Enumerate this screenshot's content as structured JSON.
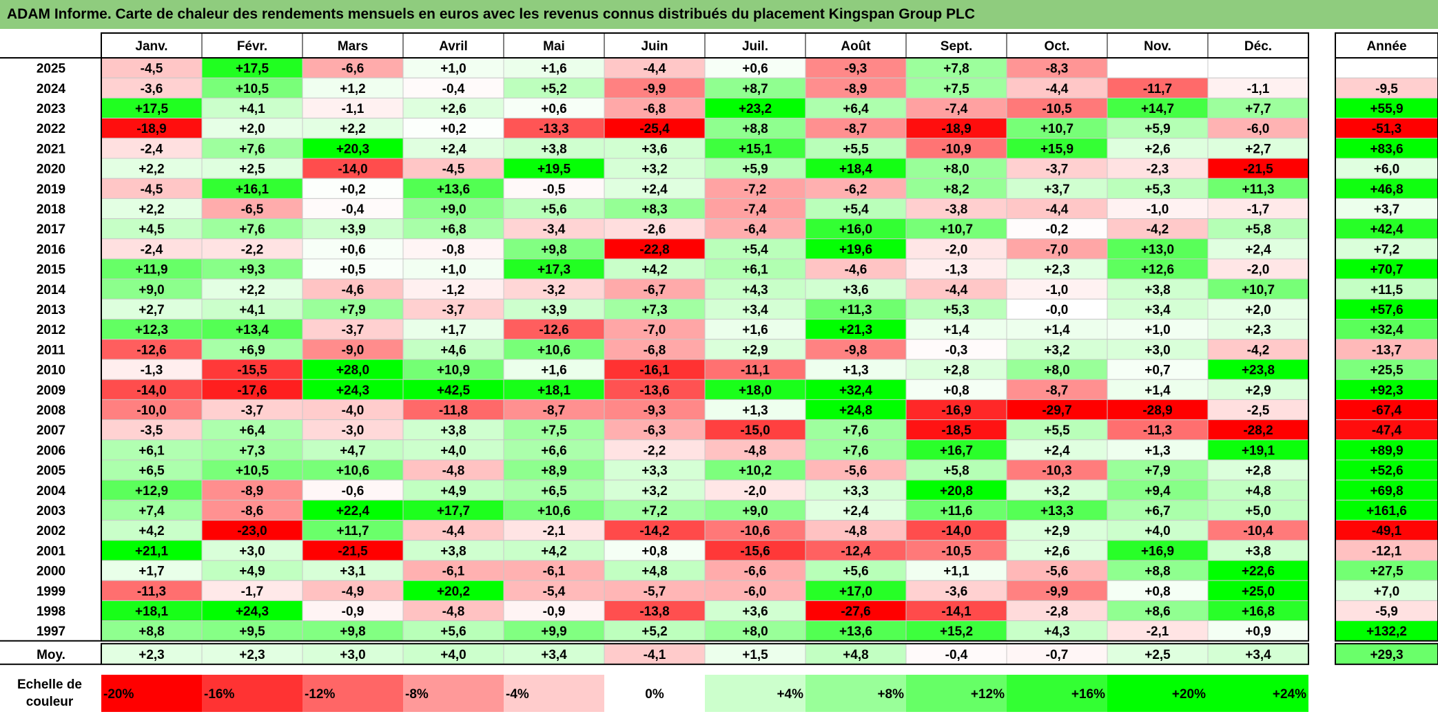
{
  "title": "ADAM Informe. Carte de chaleur des rendements mensuels en euros avec les revenus connus distribués du placement Kingspan Group PLC",
  "chart_data": {
    "type": "heatmap",
    "title": "ADAM Informe. Carte de chaleur des rendements mensuels en euros avec les revenus connus distribués du placement Kingspan Group PLC",
    "months": [
      "Janv.",
      "Févr.",
      "Mars",
      "Avril",
      "Mai",
      "Juin",
      "Juil.",
      "Août",
      "Sept.",
      "Oct.",
      "Nov.",
      "Déc."
    ],
    "year_header": "Année",
    "rows": [
      {
        "year": "2025",
        "values": [
          "-4,5",
          "+17,5",
          "-6,6",
          "+1,0",
          "+1,6",
          "-4,4",
          "+0,6",
          "-9,3",
          "+7,8",
          "-8,3",
          "",
          ""
        ],
        "annual": ""
      },
      {
        "year": "2024",
        "values": [
          "-3,6",
          "+10,5",
          "+1,2",
          "-0,4",
          "+5,2",
          "-9,9",
          "+8,7",
          "-8,9",
          "+7,5",
          "-4,4",
          "-11,7",
          "-1,1"
        ],
        "annual": "-9,5"
      },
      {
        "year": "2023",
        "values": [
          "+17,5",
          "+4,1",
          "-1,1",
          "+2,6",
          "+0,6",
          "-6,8",
          "+23,2",
          "+6,4",
          "-7,4",
          "-10,5",
          "+14,7",
          "+7,7"
        ],
        "annual": "+55,9"
      },
      {
        "year": "2022",
        "values": [
          "-18,9",
          "+2,0",
          "+2,2",
          "+0,2",
          "-13,3",
          "-25,4",
          "+8,8",
          "-8,7",
          "-18,9",
          "+10,7",
          "+5,9",
          "-6,0"
        ],
        "annual": "-51,3"
      },
      {
        "year": "2021",
        "values": [
          "-2,4",
          "+7,6",
          "+20,3",
          "+2,4",
          "+3,8",
          "+3,6",
          "+15,1",
          "+5,5",
          "-10,9",
          "+15,9",
          "+2,6",
          "+2,7"
        ],
        "annual": "+83,6"
      },
      {
        "year": "2020",
        "values": [
          "+2,2",
          "+2,5",
          "-14,0",
          "-4,5",
          "+19,5",
          "+3,2",
          "+5,9",
          "+18,4",
          "+8,0",
          "-3,7",
          "-2,3",
          "-21,5"
        ],
        "annual": "+6,0"
      },
      {
        "year": "2019",
        "values": [
          "-4,5",
          "+16,1",
          "+0,2",
          "+13,6",
          "-0,5",
          "+2,4",
          "-7,2",
          "-6,2",
          "+8,2",
          "+3,7",
          "+5,3",
          "+11,3"
        ],
        "annual": "+46,8"
      },
      {
        "year": "2018",
        "values": [
          "+2,2",
          "-6,5",
          "-0,4",
          "+9,0",
          "+5,6",
          "+8,3",
          "-7,4",
          "+5,4",
          "-3,8",
          "-4,4",
          "-1,0",
          "-1,7"
        ],
        "annual": "+3,7"
      },
      {
        "year": "2017",
        "values": [
          "+4,5",
          "+7,6",
          "+3,9",
          "+6,8",
          "-3,4",
          "-2,6",
          "-6,4",
          "+16,0",
          "+10,7",
          "-0,2",
          "-4,2",
          "+5,8"
        ],
        "annual": "+42,4"
      },
      {
        "year": "2016",
        "values": [
          "-2,4",
          "-2,2",
          "+0,6",
          "-0,8",
          "+9,8",
          "-22,8",
          "+5,4",
          "+19,6",
          "-2,0",
          "-7,0",
          "+13,0",
          "+2,4"
        ],
        "annual": "+7,2"
      },
      {
        "year": "2015",
        "values": [
          "+11,9",
          "+9,3",
          "+0,5",
          "+1,0",
          "+17,3",
          "+4,2",
          "+6,1",
          "-4,6",
          "-1,3",
          "+2,3",
          "+12,6",
          "-2,0"
        ],
        "annual": "+70,7"
      },
      {
        "year": "2014",
        "values": [
          "+9,0",
          "+2,2",
          "-4,6",
          "-1,2",
          "-3,2",
          "-6,7",
          "+4,3",
          "+3,6",
          "-4,4",
          "-1,0",
          "+3,8",
          "+10,7"
        ],
        "annual": "+11,5"
      },
      {
        "year": "2013",
        "values": [
          "+2,7",
          "+4,1",
          "+7,9",
          "-3,7",
          "+3,9",
          "+7,3",
          "+3,4",
          "+11,3",
          "+5,3",
          "-0,0",
          "+3,4",
          "+2,0"
        ],
        "annual": "+57,6"
      },
      {
        "year": "2012",
        "values": [
          "+12,3",
          "+13,4",
          "-3,7",
          "+1,7",
          "-12,6",
          "-7,0",
          "+1,6",
          "+21,3",
          "+1,4",
          "+1,4",
          "+1,0",
          "+2,3"
        ],
        "annual": "+32,4"
      },
      {
        "year": "2011",
        "values": [
          "-12,6",
          "+6,9",
          "-9,0",
          "+4,6",
          "+10,6",
          "-6,8",
          "+2,9",
          "-9,8",
          "-0,3",
          "+3,2",
          "+3,0",
          "-4,2"
        ],
        "annual": "-13,7"
      },
      {
        "year": "2010",
        "values": [
          "-1,3",
          "-15,5",
          "+28,0",
          "+10,9",
          "+1,6",
          "-16,1",
          "-11,1",
          "+1,3",
          "+2,8",
          "+8,0",
          "+0,7",
          "+23,8"
        ],
        "annual": "+25,5"
      },
      {
        "year": "2009",
        "values": [
          "-14,0",
          "-17,6",
          "+24,3",
          "+42,5",
          "+18,1",
          "-13,6",
          "+18,0",
          "+32,4",
          "+0,8",
          "-8,7",
          "+1,4",
          "+2,9"
        ],
        "annual": "+92,3"
      },
      {
        "year": "2008",
        "values": [
          "-10,0",
          "-3,7",
          "-4,0",
          "-11,8",
          "-8,7",
          "-9,3",
          "+1,3",
          "+24,8",
          "-16,9",
          "-29,7",
          "-28,9",
          "-2,5"
        ],
        "annual": "-67,4"
      },
      {
        "year": "2007",
        "values": [
          "-3,5",
          "+6,4",
          "-3,0",
          "+3,8",
          "+7,5",
          "-6,3",
          "-15,0",
          "+7,6",
          "-18,5",
          "+5,5",
          "-11,3",
          "-28,2"
        ],
        "annual": "-47,4"
      },
      {
        "year": "2006",
        "values": [
          "+6,1",
          "+7,3",
          "+4,7",
          "+4,0",
          "+6,6",
          "-2,2",
          "-4,8",
          "+7,6",
          "+16,7",
          "+2,4",
          "+1,3",
          "+19,1"
        ],
        "annual": "+89,9"
      },
      {
        "year": "2005",
        "values": [
          "+6,5",
          "+10,5",
          "+10,6",
          "-4,8",
          "+8,9",
          "+3,3",
          "+10,2",
          "-5,6",
          "+5,8",
          "-10,3",
          "+7,9",
          "+2,8"
        ],
        "annual": "+52,6"
      },
      {
        "year": "2004",
        "values": [
          "+12,9",
          "-8,9",
          "-0,6",
          "+4,9",
          "+6,5",
          "+3,2",
          "-2,0",
          "+3,3",
          "+20,8",
          "+3,2",
          "+9,4",
          "+4,8"
        ],
        "annual": "+69,8"
      },
      {
        "year": "2003",
        "values": [
          "+7,4",
          "-8,6",
          "+22,4",
          "+17,7",
          "+10,6",
          "+7,2",
          "+9,0",
          "+2,4",
          "+11,6",
          "+13,3",
          "+6,7",
          "+5,0"
        ],
        "annual": "+161,6"
      },
      {
        "year": "2002",
        "values": [
          "+4,2",
          "-23,0",
          "+11,7",
          "-4,4",
          "-2,1",
          "-14,2",
          "-10,6",
          "-4,8",
          "-14,0",
          "+2,9",
          "+4,0",
          "-10,4"
        ],
        "annual": "-49,1"
      },
      {
        "year": "2001",
        "values": [
          "+21,1",
          "+3,0",
          "-21,5",
          "+3,8",
          "+4,2",
          "+0,8",
          "-15,6",
          "-12,4",
          "-10,5",
          "+2,6",
          "+16,9",
          "+3,8"
        ],
        "annual": "-12,1"
      },
      {
        "year": "2000",
        "values": [
          "+1,7",
          "+4,9",
          "+3,1",
          "-6,1",
          "-6,1",
          "+4,8",
          "-6,6",
          "+5,6",
          "+1,1",
          "-5,6",
          "+8,8",
          "+22,6"
        ],
        "annual": "+27,5"
      },
      {
        "year": "1999",
        "values": [
          "-11,3",
          "-1,7",
          "-4,9",
          "+20,2",
          "-5,4",
          "-5,7",
          "-6,0",
          "+17,0",
          "-3,6",
          "-9,9",
          "+0,8",
          "+25,0"
        ],
        "annual": "+7,0"
      },
      {
        "year": "1998",
        "values": [
          "+18,1",
          "+24,3",
          "-0,9",
          "-4,8",
          "-0,9",
          "-13,8",
          "+3,6",
          "-27,6",
          "-14,1",
          "-2,8",
          "+8,6",
          "+16,8"
        ],
        "annual": "-5,9"
      },
      {
        "year": "1997",
        "values": [
          "+8,8",
          "+9,5",
          "+9,8",
          "+5,6",
          "+9,9",
          "+5,2",
          "+8,0",
          "+13,6",
          "+15,2",
          "+4,3",
          "-2,1",
          "+0,9"
        ],
        "annual": "+132,2"
      }
    ],
    "average": {
      "label": "Moy.",
      "values": [
        "+2,3",
        "+2,3",
        "+3,0",
        "+4,0",
        "+3,4",
        "-4,1",
        "+1,5",
        "+4,8",
        "-0,4",
        "-0,7",
        "+2,5",
        "+3,4"
      ],
      "annual": "+29,3"
    },
    "scale": {
      "label_line1": "Echelle de",
      "label_line2": "couleur",
      "steps": [
        {
          "label": "-20%",
          "value": -20
        },
        {
          "label": "-16%",
          "value": -16
        },
        {
          "label": "-12%",
          "value": -12
        },
        {
          "label": "-8%",
          "value": -8
        },
        {
          "label": "-4%",
          "value": -4
        },
        {
          "label": "0%",
          "value": 0
        },
        {
          "label": "+4%",
          "value": 4
        },
        {
          "label": "+8%",
          "value": 8
        },
        {
          "label": "+12%",
          "value": 12
        },
        {
          "label": "+16%",
          "value": 16
        },
        {
          "label": "+20%",
          "value": 20
        },
        {
          "label": "+24%",
          "value": 24
        }
      ]
    },
    "colors": {
      "title_bg": "#8fcc7e",
      "negative_max": "#ff0000",
      "neutral": "#ffffff",
      "positive_max": "#00ff00",
      "grid": "#c8c8c8",
      "border": "#000000"
    }
  }
}
